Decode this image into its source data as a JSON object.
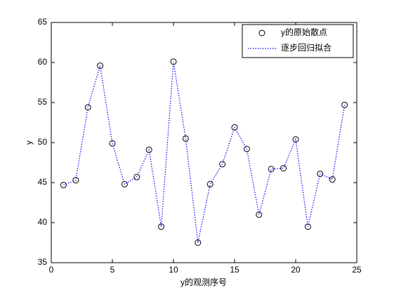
{
  "chart_data": {
    "type": "line",
    "x": [
      1,
      2,
      3,
      4,
      5,
      6,
      7,
      8,
      9,
      10,
      11,
      12,
      13,
      14,
      15,
      16,
      17,
      18,
      19,
      20,
      21,
      22,
      23,
      24
    ],
    "series": [
      {
        "name": "y的原始散点",
        "color": "#000000",
        "marker": "circle",
        "values": [
          44.7,
          45.3,
          54.4,
          59.6,
          49.9,
          44.8,
          45.7,
          49.1,
          39.5,
          60.1,
          50.5,
          37.5,
          44.8,
          47.3,
          51.9,
          49.2,
          41.0,
          46.7,
          46.8,
          50.4,
          39.5,
          46.1,
          45.4,
          54.7
        ]
      },
      {
        "name": "逐步回归拟合",
        "color": "#0000ff",
        "linestyle": "dotted",
        "values": [
          44.7,
          45.3,
          54.4,
          59.6,
          49.9,
          44.8,
          45.7,
          49.1,
          39.5,
          60.1,
          50.5,
          37.5,
          44.8,
          47.3,
          51.9,
          49.2,
          41.0,
          46.7,
          46.8,
          50.4,
          39.5,
          46.1,
          45.4,
          54.7
        ]
      }
    ],
    "xlabel": "y的观测序号",
    "ylabel": "y",
    "xlim": [
      0,
      25
    ],
    "xticks": [
      0,
      5,
      10,
      15,
      20,
      25
    ],
    "ylim": [
      35,
      65
    ],
    "yticks": [
      35,
      40,
      45,
      50,
      55,
      60,
      65
    ],
    "legend": "upper right"
  }
}
